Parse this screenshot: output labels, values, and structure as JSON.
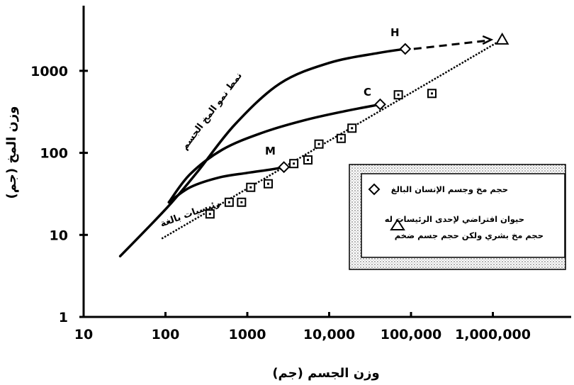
{
  "chart_data": {
    "type": "line",
    "x_scale": "log",
    "y_scale": "log",
    "xlim": [
      10,
      5000000
    ],
    "ylim": [
      1,
      5000
    ],
    "x_ticks": [
      {
        "value": 10,
        "label": "10"
      },
      {
        "value": 100,
        "label": "100"
      },
      {
        "value": 1000,
        "label": "1000"
      },
      {
        "value": 10000,
        "label": "10,000"
      },
      {
        "value": 100000,
        "label": "100,000"
      },
      {
        "value": 1000000,
        "label": "1,000,000"
      }
    ],
    "y_ticks": [
      {
        "value": 1,
        "label": "1"
      },
      {
        "value": 10,
        "label": "10"
      },
      {
        "value": 100,
        "label": "100"
      },
      {
        "value": 1000,
        "label": "1000"
      }
    ],
    "xlabel": "وزن الجسم (جم)",
    "ylabel": "وزن المخ (جم)",
    "grid": false,
    "curves": [
      {
        "label": "H",
        "style": "solid",
        "x": [
          28,
          60,
          120,
          250,
          700,
          2500,
          10000,
          40000,
          85000
        ],
        "y": [
          5.5,
          12,
          25,
          60,
          220,
          700,
          1250,
          1650,
          1850
        ]
      },
      {
        "label": "C",
        "style": "solid",
        "x": [
          110,
          200,
          500,
          1500,
          5000,
          15000,
          42000
        ],
        "y": [
          25,
          55,
          110,
          175,
          250,
          320,
          390
        ]
      },
      {
        "label": "M",
        "style": "solid",
        "x": [
          110,
          200,
          450,
          1000,
          2000,
          2800
        ],
        "y": [
          25,
          38,
          50,
          57,
          63,
          67
        ]
      }
    ],
    "adult_primates_trend": {
      "style": "dotted",
      "x": [
        90,
        1200000
      ],
      "y": [
        9,
        2300
      ]
    },
    "extrapolation": {
      "style": "dashed",
      "x": [
        85000,
        900000
      ],
      "y": [
        1850,
        2350
      ]
    },
    "adult_primates_squares": {
      "x": [
        350,
        600,
        850,
        1100,
        1800,
        3700,
        5500,
        7500,
        14000,
        19000,
        70000,
        180000
      ],
      "y": [
        18,
        25,
        25,
        38,
        42,
        74,
        82,
        128,
        150,
        200,
        510,
        530
      ]
    },
    "adult_human_brain_body": [
      {
        "label": "H",
        "x": 85000,
        "y": 1850
      },
      {
        "label": "C",
        "x": 42000,
        "y": 390
      },
      {
        "label": "M",
        "x": 2800,
        "y": 67
      }
    ],
    "hypothetical_primate": {
      "x": 1300000,
      "y": 2400
    },
    "annotations": {
      "brain_growth_curve": "نمط نمو المخ الجسم",
      "adult_primates": "رئيسيات بالغة",
      "point_H": "H",
      "point_C": "C",
      "point_M": "M"
    },
    "legend": {
      "placement": "right",
      "entries": [
        {
          "symbol": "diamond",
          "text": "حجم مخ وجسم الإنسان البالغ"
        },
        {
          "symbol": "triangle",
          "text_line1": "حيوان افتراضي لإحدى الرئيسات له",
          "text_line2": "حجم مخ بشري ولكن حجم جسم ضخم"
        }
      ]
    }
  }
}
